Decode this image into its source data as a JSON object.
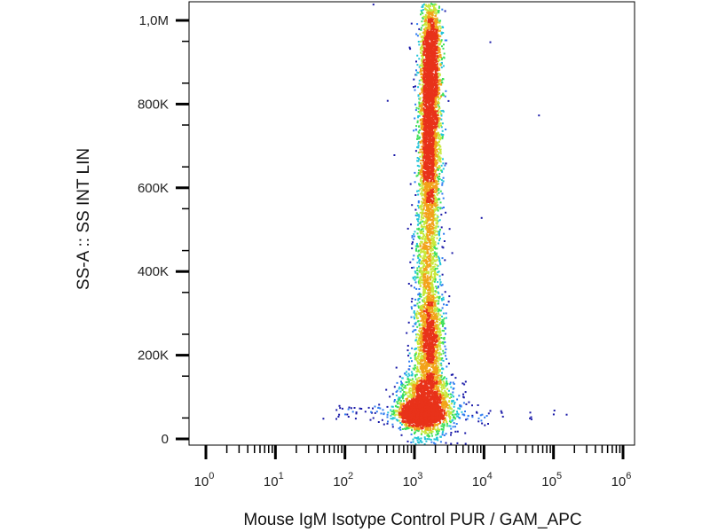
{
  "chart_data": {
    "type": "scatter",
    "subtype": "flow-cytometry density dot plot",
    "title": "",
    "xlabel": "Mouse IgM Isotype Control PUR / GAM_APC",
    "ylabel": "SS-A :: SS INT LIN",
    "x_scale": "log",
    "xlim": [
      1,
      1000000
    ],
    "ylim": [
      0,
      1050000
    ],
    "x_ticks": [
      {
        "base": "10",
        "exp": "0",
        "value": 1
      },
      {
        "base": "10",
        "exp": "1",
        "value": 10
      },
      {
        "base": "10",
        "exp": "2",
        "value": 100
      },
      {
        "base": "10",
        "exp": "3",
        "value": 1000
      },
      {
        "base": "10",
        "exp": "4",
        "value": 10000
      },
      {
        "base": "10",
        "exp": "5",
        "value": 100000
      },
      {
        "base": "10",
        "exp": "6",
        "value": 1000000
      }
    ],
    "y_ticks": [
      {
        "label": "0",
        "value": 0
      },
      {
        "label": "200K",
        "value": 200000
      },
      {
        "label": "400K",
        "value": 400000
      },
      {
        "label": "600K",
        "value": 600000
      },
      {
        "label": "800K",
        "value": 800000
      },
      {
        "label": "1,0M",
        "value": 1000000
      }
    ],
    "grid": false,
    "legend": "none",
    "density_colors": [
      "#1a1aa8",
      "#2f7cf0",
      "#22c4d8",
      "#3ee05a",
      "#c8e83a",
      "#f2a21a",
      "#e8321a"
    ],
    "populations": [
      {
        "x_center": 1200,
        "x_log_spread": 0.11,
        "y_center": 62000,
        "y_spread": 11000,
        "count": 2600
      },
      {
        "x_center": 1400,
        "x_log_spread": 0.19,
        "y_center": 85000,
        "y_spread": 40000,
        "count": 1800
      },
      {
        "x_center": 1600,
        "x_log_spread": 0.1,
        "y_center": 230000,
        "y_spread": 70000,
        "count": 1300
      },
      {
        "x_center": 1500,
        "x_log_spread": 0.1,
        "y_center": 420000,
        "y_spread": 90000,
        "count": 700
      },
      {
        "x_center": 1600,
        "x_log_spread": 0.08,
        "y_center": 720000,
        "y_spread": 140000,
        "count": 2600
      },
      {
        "x_center": 1700,
        "x_log_spread": 0.07,
        "y_center": 920000,
        "y_spread": 80000,
        "count": 1200
      }
    ],
    "outliers": [
      {
        "x": 60000,
        "y": 775000
      },
      {
        "x": 250,
        "y": 1040000
      },
      {
        "x": 12000,
        "y": 950000
      },
      {
        "x": 9000,
        "y": 530000
      },
      {
        "x": 400,
        "y": 810000
      },
      {
        "x": 100000,
        "y": 70000
      },
      {
        "x": 150000,
        "y": 60000
      },
      {
        "x": 45000,
        "y": 65000
      },
      {
        "x": 80,
        "y": 60000
      },
      {
        "x": 500,
        "y": 680000
      }
    ]
  }
}
